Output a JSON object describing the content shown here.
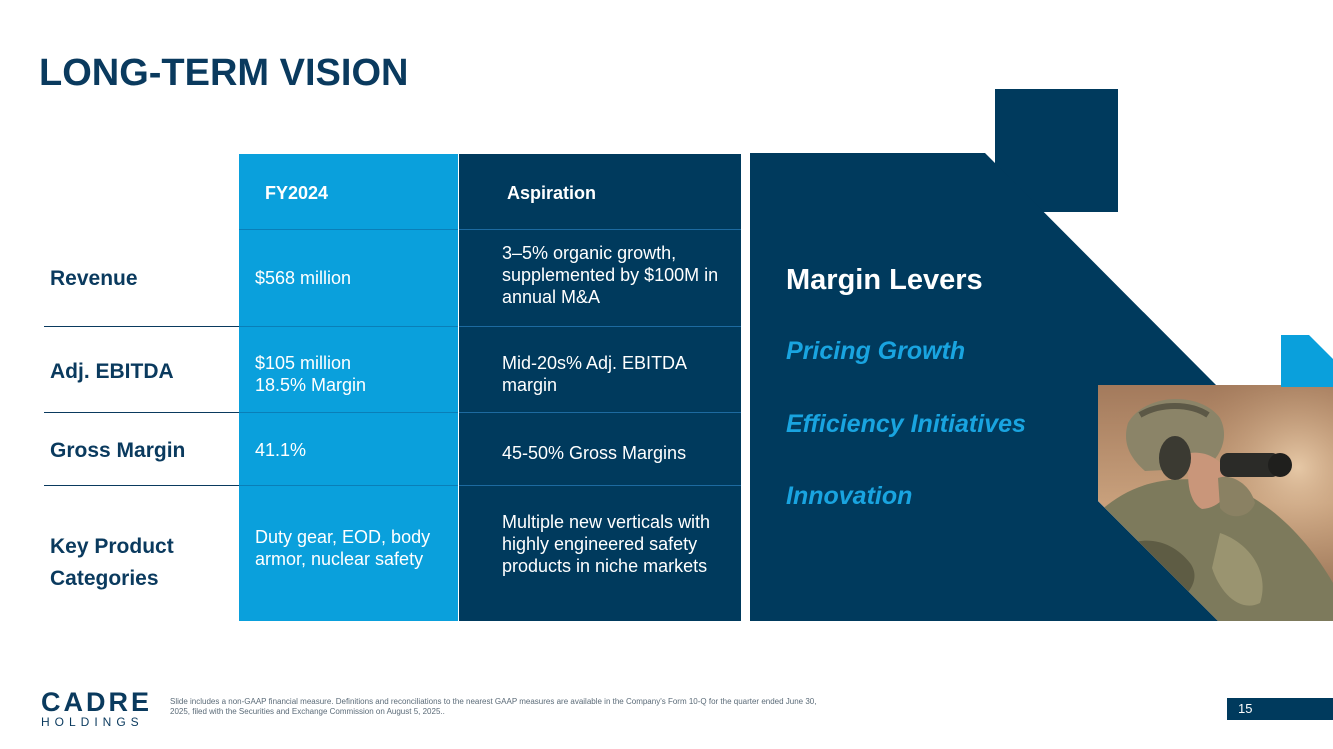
{
  "page": {
    "title": "LONG-TERM VISION"
  },
  "table": {
    "headers": {
      "fy": "FY2024",
      "aspiration": "Aspiration"
    },
    "rows": [
      {
        "label": "Revenue",
        "fy": "$568 million",
        "aspiration": "3–5% organic growth, supplemented by $100M in annual M&A"
      },
      {
        "label": "Adj. EBITDA",
        "fy": "$105 million\n18.5% Margin",
        "aspiration": "Mid-20s% Adj. EBITDA margin"
      },
      {
        "label": "Gross Margin",
        "fy": "41.1%",
        "aspiration": "45-50% Gross Margins"
      },
      {
        "label": "Key Product\nCategories",
        "fy": "Duty gear, EOD, body armor, nuclear safety",
        "aspiration": "Multiple new verticals with highly engineered safety products in niche markets"
      }
    ]
  },
  "margin_levers": {
    "title": "Margin Levers",
    "items": [
      "Pricing Growth",
      "Efficiency Initiatives",
      "Innovation"
    ]
  },
  "footer": {
    "logo_top": "CADRE",
    "logo_bottom": "HOLDINGS",
    "note": "Slide includes a non-GAAP financial measure. Definitions and reconciliations to the nearest GAAP measures are available in the Company's Form 10-Q for the quarter ended June 30, 2025, filed with the Securities and Exchange Commission on August 5, 2025..",
    "page_number": "15"
  },
  "colors": {
    "navy": "#003a5d",
    "blue": "#0aa0dc",
    "title": "#0a3a5e",
    "lever_accent": "#19a4e0"
  },
  "icons": {
    "photo": "soldier-binoculars-photo"
  }
}
